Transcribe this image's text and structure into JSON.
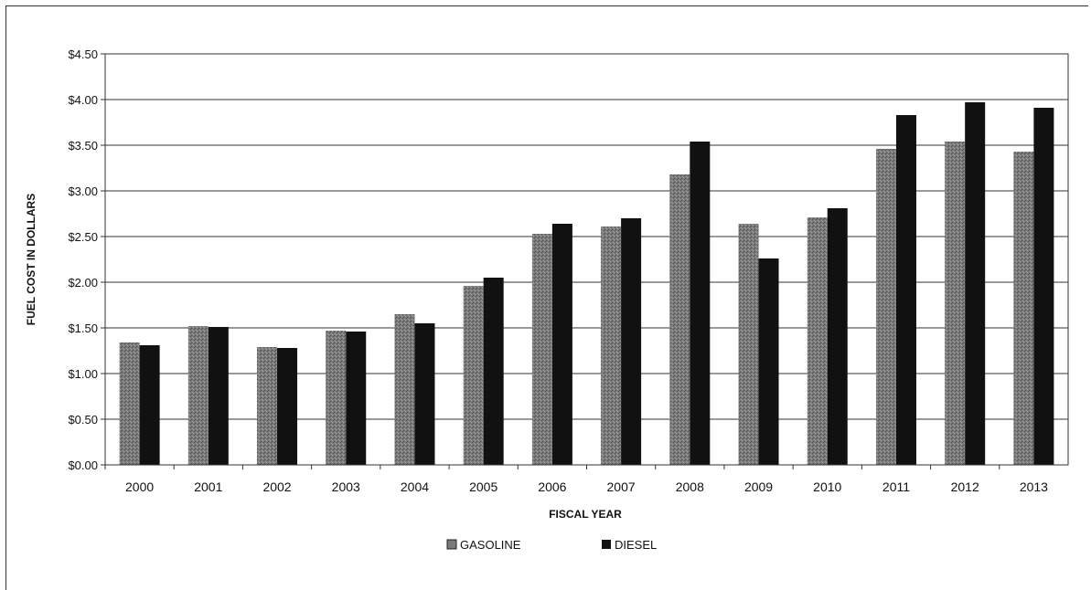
{
  "chart_data": {
    "type": "bar",
    "title": "",
    "xlabel": "FISCAL YEAR",
    "ylabel": "FUEL COST IN DOLLARS",
    "ylim": [
      0,
      4.5
    ],
    "y_ticks": [
      "$0.00",
      "$0.50",
      "$1.00",
      "$1.50",
      "$2.00",
      "$2.50",
      "$3.00",
      "$3.50",
      "$4.00",
      "$4.50"
    ],
    "y_tick_values": [
      0,
      0.5,
      1.0,
      1.5,
      2.0,
      2.5,
      3.0,
      3.5,
      4.0,
      4.5
    ],
    "categories": [
      "2000",
      "2001",
      "2002",
      "2003",
      "2004",
      "2005",
      "2006",
      "2007",
      "2008",
      "2009",
      "2010",
      "2011",
      "2012",
      "2013"
    ],
    "series": [
      {
        "name": "GASOLINE",
        "color": "#7a7a7a",
        "values": [
          1.34,
          1.52,
          1.29,
          1.47,
          1.65,
          1.96,
          2.53,
          2.61,
          3.18,
          2.64,
          2.71,
          3.46,
          3.54,
          3.43
        ]
      },
      {
        "name": "DIESEL",
        "color": "#111111",
        "values": [
          1.31,
          1.51,
          1.28,
          1.46,
          1.55,
          2.05,
          2.64,
          2.7,
          3.54,
          2.26,
          2.81,
          3.83,
          3.97,
          3.91
        ]
      }
    ],
    "grid": true,
    "legend_position": "bottom-center"
  }
}
